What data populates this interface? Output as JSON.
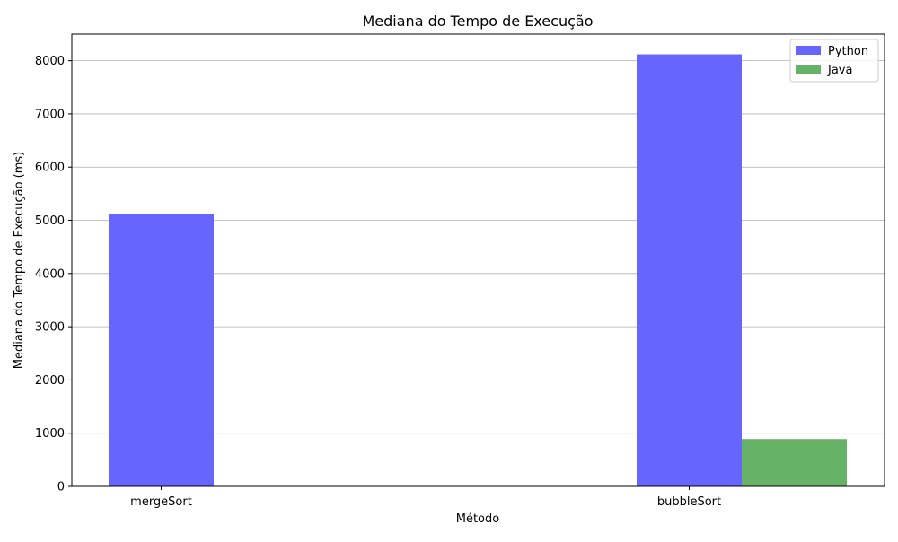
{
  "chart_data": {
    "type": "bar",
    "title": "Mediana do Tempo de Execução",
    "xlabel": "Método",
    "ylabel": "Mediana do Tempo de Execução (ms)",
    "categories": [
      "mergeSort",
      "bubbleSort"
    ],
    "series": [
      {
        "name": "Python",
        "color": "#6666ff",
        "values": [
          5110,
          8120
        ]
      },
      {
        "name": "Java",
        "color": "#66b266",
        "values": [
          0,
          890
        ]
      }
    ],
    "ylim": [
      0,
      8500
    ],
    "yticks": [
      0,
      1000,
      2000,
      3000,
      4000,
      5000,
      6000,
      7000,
      8000
    ],
    "grid": "y-major",
    "legend_position": "top-right"
  }
}
